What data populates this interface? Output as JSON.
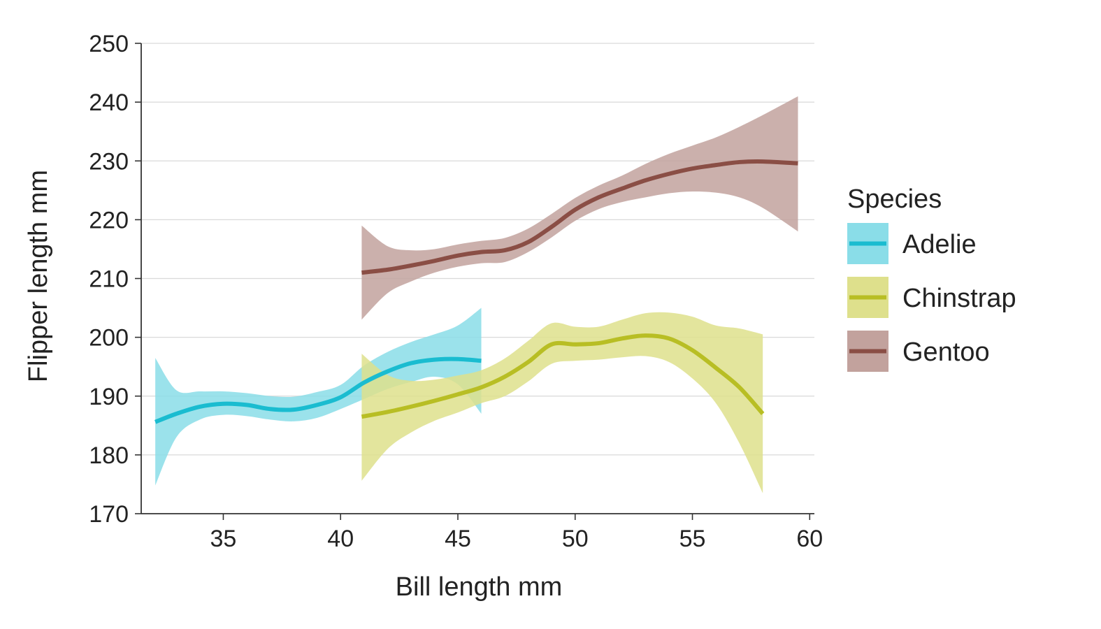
{
  "chart_data": {
    "type": "line",
    "title": "",
    "xlabel": "Bill length mm",
    "ylabel": "Flipper length mm",
    "xlim": [
      31.5,
      60.2
    ],
    "ylim": [
      170,
      250
    ],
    "xticks": [
      35,
      40,
      45,
      50,
      55,
      60
    ],
    "yticks": [
      170,
      180,
      190,
      200,
      210,
      220,
      230,
      240,
      250
    ],
    "grid": "horizontal",
    "legend": {
      "title": "Species",
      "placement": "right"
    },
    "series": [
      {
        "name": "Adelie",
        "color": "#1ABCD0",
        "band_color": "#8ADDE8",
        "x": [
          32.1,
          33,
          34,
          35,
          36,
          37,
          38,
          39,
          40,
          41,
          42,
          43,
          44,
          45,
          46
        ],
        "y": [
          185.6,
          187,
          188.2,
          188.7,
          188.5,
          187.8,
          187.7,
          188.5,
          189.8,
          192.3,
          194.2,
          195.6,
          196.2,
          196.3,
          196.0
        ],
        "lower": [
          174.8,
          183.0,
          186.0,
          186.8,
          186.6,
          186.0,
          185.7,
          186.3,
          187.8,
          189.5,
          191.2,
          192.4,
          193.3,
          192.0,
          187.0
        ],
        "upper": [
          196.5,
          191.0,
          190.8,
          190.8,
          190.5,
          190.0,
          189.9,
          190.7,
          191.9,
          195.2,
          197.5,
          199.2,
          200.5,
          202.0,
          205.0
        ]
      },
      {
        "name": "Chinstrap",
        "color": "#B8BE24",
        "band_color": "#DEE08C",
        "x": [
          40.9,
          42,
          43,
          44,
          45,
          46,
          47,
          48,
          49,
          50,
          51,
          52,
          53,
          54,
          55,
          56,
          57,
          58
        ],
        "y": [
          186.5,
          187.3,
          188.2,
          189.2,
          190.3,
          191.5,
          193.3,
          195.8,
          198.8,
          198.8,
          199.0,
          199.8,
          200.3,
          199.8,
          197.8,
          194.8,
          191.5,
          187.0
        ],
        "lower": [
          175.6,
          181.0,
          183.8,
          185.8,
          187.2,
          188.8,
          190.0,
          192.5,
          195.5,
          196.0,
          196.2,
          196.6,
          196.8,
          195.8,
          193.0,
          188.8,
          182.0,
          173.5
        ],
        "upper": [
          197.2,
          193.6,
          192.6,
          192.8,
          193.5,
          194.4,
          196.4,
          199.4,
          202.4,
          201.8,
          201.8,
          203.0,
          204.1,
          204.2,
          203.5,
          202.0,
          201.5,
          200.5
        ]
      },
      {
        "name": "Gentoo",
        "color": "#8A4E45",
        "band_color": "#C2A29D",
        "x": [
          40.9,
          42,
          43,
          44,
          45,
          46,
          47,
          48,
          49,
          50,
          51,
          52,
          53,
          54,
          55,
          56,
          57,
          58,
          59.5
        ],
        "y": [
          211.0,
          211.5,
          212.2,
          213.0,
          213.9,
          214.5,
          214.8,
          216.2,
          218.8,
          221.7,
          223.8,
          225.3,
          226.7,
          227.8,
          228.7,
          229.3,
          229.8,
          229.9,
          229.6
        ],
        "lower": [
          203.0,
          207.5,
          209.5,
          211.0,
          212.0,
          212.6,
          212.8,
          214.5,
          217.0,
          219.8,
          221.8,
          223.0,
          223.8,
          224.5,
          224.8,
          224.6,
          223.8,
          222.0,
          218.0
        ],
        "upper": [
          219.0,
          215.5,
          214.8,
          215.0,
          215.8,
          216.4,
          216.9,
          218.5,
          221.0,
          223.7,
          225.8,
          227.5,
          229.5,
          231.2,
          232.6,
          234.0,
          235.8,
          237.8,
          241.0
        ]
      }
    ]
  }
}
